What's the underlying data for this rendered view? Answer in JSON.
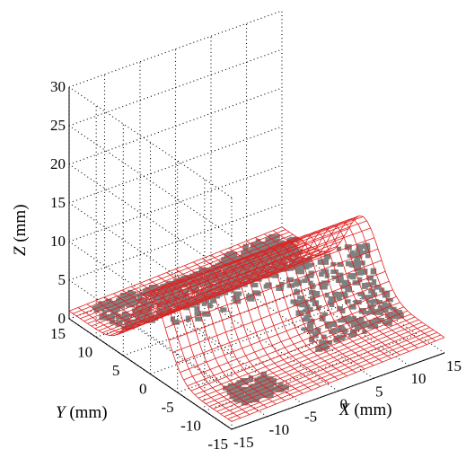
{
  "chart_data": {
    "type": "surface",
    "xlabel_var": "X",
    "xlabel_unit": "(mm)",
    "ylabel_var": "Y",
    "ylabel_unit": "(mm)",
    "zlabel_var": "Z",
    "zlabel_unit": "(mm)",
    "xlim": [
      -15,
      15
    ],
    "ylim": [
      -15,
      15
    ],
    "zlim": [
      0,
      30
    ],
    "x_ticks": [
      "-15",
      "-10",
      "-5",
      "0",
      "5",
      "10",
      "15"
    ],
    "y_ticks": [
      "-15",
      "-10",
      "-5",
      "0",
      "5",
      "10",
      "15"
    ],
    "z_ticks": [
      "0",
      "5",
      "10",
      "15",
      "20",
      "25",
      "30"
    ],
    "grid": true,
    "series": [
      {
        "kind": "fitted-surface-mesh",
        "color": "#e02020",
        "ridge_center_y": 0,
        "ridge_peak_z": 10.5,
        "ridge_sigma_y": 3.0,
        "edge_z_low": 1.0,
        "edge_z_high": 2.0
      },
      {
        "kind": "measured-point-cloud",
        "color": "#808080"
      }
    ]
  }
}
